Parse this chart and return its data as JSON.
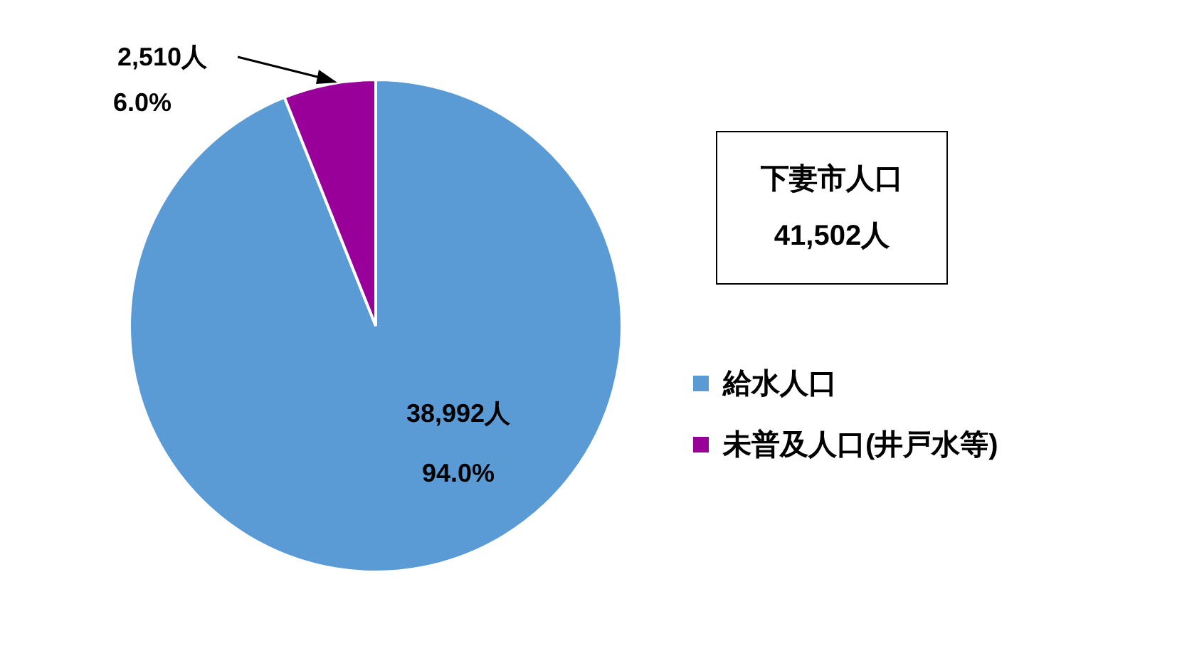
{
  "chart_data": {
    "type": "pie",
    "categories": [
      "給水人口",
      "未普及人口(井戸水等)"
    ],
    "values": [
      38992,
      2510
    ],
    "colors": [
      "#5b9bd5",
      "#990099"
    ],
    "value_labels": [
      "38,992人\n94.0%",
      "2,510人\n6.0%"
    ],
    "legend": "right",
    "annotations": [
      "下妻市人口",
      "41,502人"
    ]
  }
}
